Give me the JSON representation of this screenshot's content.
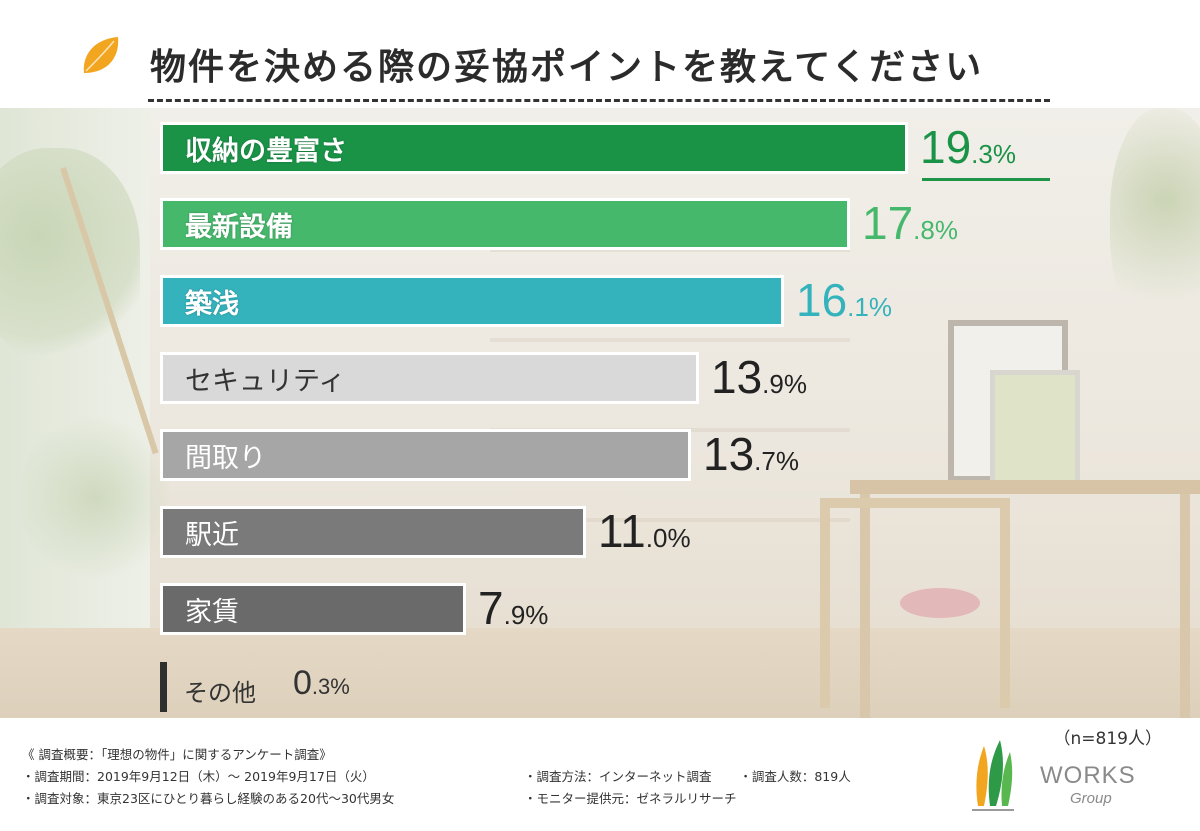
{
  "title": "物件を決める際の妥協ポイントを教えてください",
  "sample_size": "（n=819人）",
  "notes": {
    "heading": "《 調査概要：「理想の物件」に関するアンケート調査》",
    "period": "・調査期間：2019年9月12日（木）～ 2019年9月17日（火）",
    "target": "・調査対象：東京23区にひとり暮らし経験のある20代～30代男女",
    "method": "・調査方法：インターネット調査",
    "count": "・調査人数：819人",
    "provider": "・モニター提供元：ゼネラルリサーチ"
  },
  "logo": {
    "text": "WORKS",
    "sub": "Group"
  },
  "colors": {
    "rank1": "#1a9347",
    "rank2": "#46b86c",
    "rank3": "#35b3bd",
    "light_gray": "#d9d9d9",
    "mid_gray": "#a6a6a6",
    "dark_gray": "#7a7a7a",
    "darker_gray": "#6a6a6a"
  },
  "chart_data": {
    "type": "bar",
    "orientation": "horizontal",
    "title": "物件を決める際の妥協ポイントを教えてください",
    "categories": [
      "収納の豊富さ",
      "最新設備",
      "築浅",
      "セキュリティ",
      "間取り",
      "駅近",
      "家賃",
      "その他"
    ],
    "values": [
      19.3,
      17.8,
      16.1,
      13.9,
      13.7,
      11.0,
      7.9,
      0.3
    ],
    "value_labels": [
      {
        "int": "19",
        "dec": ".3%"
      },
      {
        "int": "17",
        "dec": ".8%"
      },
      {
        "int": "16",
        "dec": ".1%"
      },
      {
        "int": "13",
        "dec": ".9%"
      },
      {
        "int": "13",
        "dec": ".7%"
      },
      {
        "int": "11",
        "dec": ".0%"
      },
      {
        "int": "7",
        "dec": ".9%"
      },
      {
        "int": "0",
        "dec": ".3%"
      }
    ],
    "unit": "%",
    "xlim": [
      0,
      19.3
    ],
    "grid": false,
    "legend": "none"
  }
}
